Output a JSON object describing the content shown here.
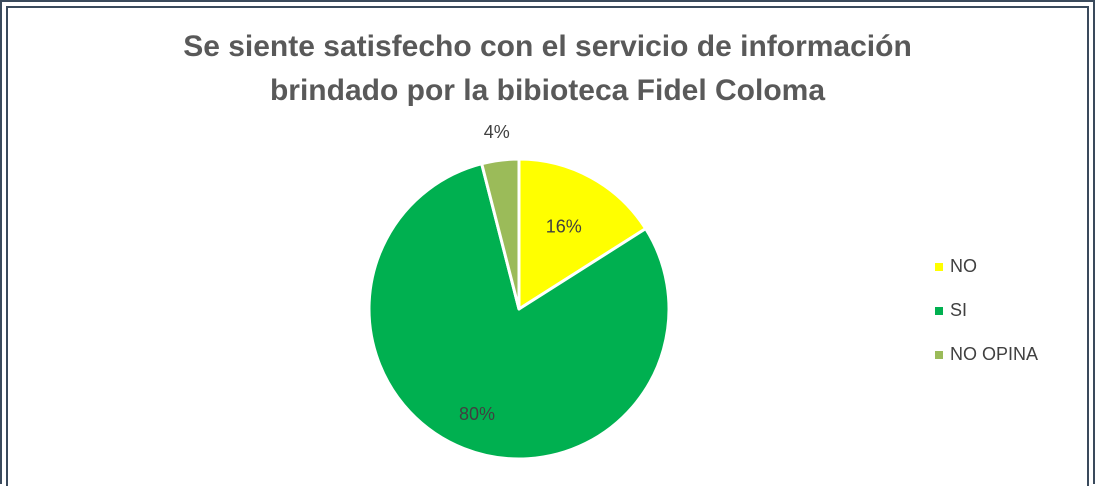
{
  "chart_data": {
    "type": "pie",
    "title_lines": [
      "Se siente satisfecho con el servicio de información",
      "brindado por la bibioteca Fidel Coloma"
    ],
    "slices": [
      {
        "label": "NO",
        "value": 16,
        "data_label": "16%",
        "color": "#ffff00"
      },
      {
        "label": "SI",
        "value": 80,
        "data_label": "80%",
        "color": "#00b050"
      },
      {
        "label": "NO OPINA",
        "value": 4,
        "data_label": "4%",
        "color": "#9bbb59"
      }
    ],
    "legend_position": "right"
  }
}
